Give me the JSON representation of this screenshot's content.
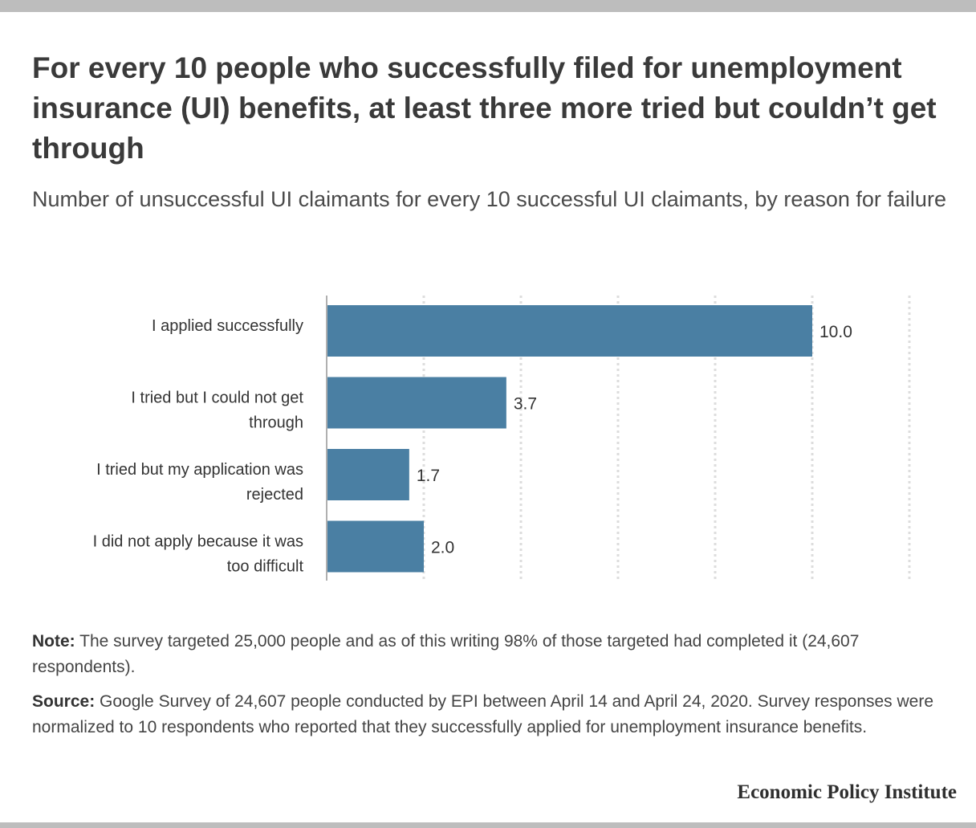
{
  "title": "For every 10 people who successfully filed for unemployment insurance (UI) benefits, at least three more tried but couldn’t get through",
  "subtitle": "Number of unsuccessful UI claimants for every 10 successful UI claimants, by reason for failure",
  "chart_data": {
    "type": "bar",
    "orientation": "horizontal",
    "categories": [
      [
        "I applied successfully"
      ],
      [
        "I tried but I could not get",
        "through"
      ],
      [
        "I tried but my application was",
        "rejected"
      ],
      [
        "I did not apply because it was",
        "too difficult"
      ]
    ],
    "values": [
      10.0,
      3.7,
      1.7,
      2.0
    ],
    "value_labels": [
      "10.0",
      "3.7",
      "1.7",
      "2.0"
    ],
    "xlim": [
      0,
      12
    ],
    "grid": true,
    "bar_color": "#4a7fa3",
    "grid_color": "#dddddd"
  },
  "note": {
    "label": "Note:",
    "text": " The survey targeted 25,000 people and as of this writing 98% of those targeted had completed it (24,607 respondents)."
  },
  "source": {
    "label": "Source:",
    "text": " Google Survey of 24,607 people conducted by EPI between April 14 and April 24, 2020. Survey responses were normalized to 10 respondents who reported that they successfully applied for unemployment insurance benefits."
  },
  "brand": "Economic Policy Institute"
}
